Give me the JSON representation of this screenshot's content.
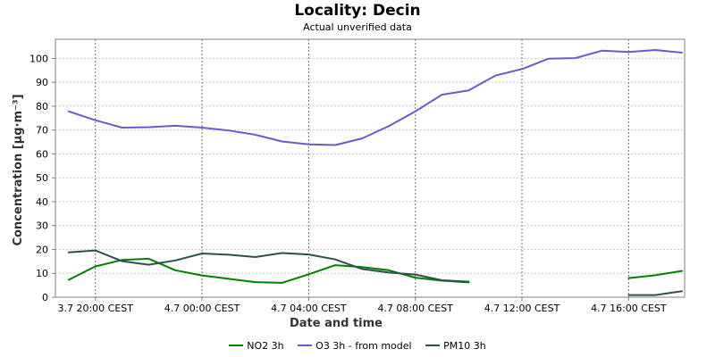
{
  "title": "Locality: Decin",
  "subtitle": "Actual unverified data",
  "chart_data": {
    "type": "line",
    "title": "Locality: Decin",
    "subtitle": "Actual unverified data",
    "xlabel": "Date and time",
    "ylabel": "Concentration [µg·m⁻³]",
    "ylim": [
      0,
      108
    ],
    "yticks": [
      0,
      10,
      20,
      30,
      40,
      50,
      60,
      70,
      80,
      90,
      100
    ],
    "x_unit": "hours",
    "xlim": [
      -1.5,
      22.1
    ],
    "xticks": [
      {
        "x": 0,
        "label": "3.7 20:00 CEST"
      },
      {
        "x": 4,
        "label": "4.7 00:00 CEST"
      },
      {
        "x": 8,
        "label": "4.7 04:00 CEST"
      },
      {
        "x": 12,
        "label": "4.7 08:00 CEST"
      },
      {
        "x": 16,
        "label": "4.7 12:00 CEST"
      },
      {
        "x": 20,
        "label": "4.7 16:00 CEST"
      }
    ],
    "grid": true,
    "legend_position": "bottom",
    "series": [
      {
        "name": "NO2 3h",
        "color": "#008000",
        "points": [
          [
            -1,
            7.3
          ],
          [
            0,
            12.9
          ],
          [
            1,
            15.6
          ],
          [
            2,
            16.1
          ],
          [
            3,
            11.3
          ],
          [
            4,
            9.1
          ],
          [
            5,
            7.7
          ],
          [
            6,
            6.3
          ],
          [
            7,
            6.0
          ],
          [
            8,
            9.6
          ],
          [
            9,
            13.4
          ],
          [
            10,
            12.6
          ],
          [
            11,
            11.3
          ],
          [
            12,
            8.2
          ],
          [
            13,
            6.9
          ],
          [
            14,
            6.2
          ],
          null,
          [
            20,
            8.0
          ],
          [
            21,
            9.2
          ],
          [
            22,
            11.0
          ]
        ]
      },
      {
        "name": "O3 3h - from model",
        "color": "#6a5acd",
        "points": [
          [
            -1,
            77.8
          ],
          [
            0,
            74.1
          ],
          [
            1,
            71.0
          ],
          [
            2,
            71.2
          ],
          [
            3,
            71.8
          ],
          [
            4,
            71.0
          ],
          [
            5,
            69.8
          ],
          [
            6,
            68.0
          ],
          [
            7,
            65.2
          ],
          [
            8,
            64.0
          ],
          [
            9,
            63.7
          ],
          [
            10,
            66.5
          ],
          [
            11,
            71.6
          ],
          [
            12,
            77.8
          ],
          [
            13,
            84.8
          ],
          [
            14,
            86.6
          ],
          [
            15,
            92.8
          ],
          [
            16,
            95.5
          ],
          [
            17,
            99.9
          ],
          [
            18,
            100.1
          ],
          [
            19,
            103.2
          ],
          [
            20,
            102.7
          ],
          [
            21,
            103.5
          ],
          [
            22,
            102.4
          ]
        ]
      },
      {
        "name": "PM10 3h",
        "color": "#2f4f4f",
        "points": [
          [
            -1,
            18.8
          ],
          [
            0,
            19.6
          ],
          [
            1,
            15.1
          ],
          [
            2,
            13.6
          ],
          [
            3,
            15.4
          ],
          [
            4,
            18.3
          ],
          [
            5,
            17.8
          ],
          [
            6,
            16.8
          ],
          [
            7,
            18.5
          ],
          [
            8,
            17.9
          ],
          [
            9,
            15.8
          ],
          [
            10,
            11.8
          ],
          [
            11,
            10.3
          ],
          [
            12,
            9.5
          ],
          [
            13,
            7.1
          ],
          [
            14,
            6.5
          ],
          null,
          [
            20,
            0.9
          ],
          [
            21,
            0.9
          ],
          [
            22,
            2.5
          ]
        ]
      }
    ]
  }
}
